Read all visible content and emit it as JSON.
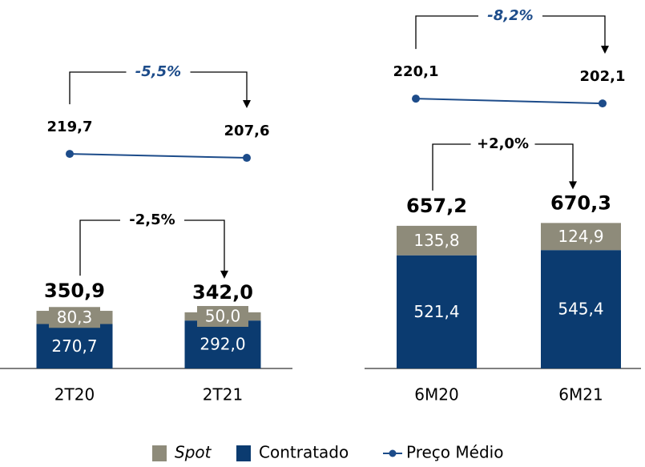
{
  "chart_data": [
    {
      "type": "bar",
      "stacked": true,
      "categories": [
        "2T20",
        "2T21"
      ],
      "series": [
        {
          "name": "Contratado",
          "color": "#0b3b70",
          "values": [
            270.7,
            292.0
          ],
          "value_labels": [
            "270,7",
            "292,0"
          ]
        },
        {
          "name": "Spot",
          "color": "#8e8b7a",
          "values": [
            80.3,
            50.0
          ],
          "value_labels": [
            "80,3",
            "50,0"
          ]
        },
        {
          "name": "Preço Médio",
          "type": "line",
          "color": "#1d4c8a",
          "values": [
            219.7,
            207.6
          ],
          "value_labels": [
            "219,7",
            "207,6"
          ]
        }
      ],
      "totals": [
        350.9,
        342.0
      ],
      "totals_labels": [
        "350,9",
        "342,0"
      ],
      "annotations": {
        "bars": "-2,5%",
        "line": "-5,5%"
      }
    },
    {
      "type": "bar",
      "stacked": true,
      "categories": [
        "6M20",
        "6M21"
      ],
      "series": [
        {
          "name": "Contratado",
          "color": "#0b3b70",
          "values": [
            521.4,
            545.4
          ],
          "value_labels": [
            "521,4",
            "545,4"
          ]
        },
        {
          "name": "Spot",
          "color": "#8e8b7a",
          "values": [
            135.8,
            124.9
          ],
          "value_labels": [
            "135,8",
            "124,9"
          ]
        },
        {
          "name": "Preço Médio",
          "type": "line",
          "color": "#1d4c8a",
          "values": [
            220.1,
            202.1
          ],
          "value_labels": [
            "220,1",
            "202,1"
          ]
        }
      ],
      "totals": [
        657.2,
        670.3
      ],
      "totals_labels": [
        "657,2",
        "670,3"
      ],
      "annotations": {
        "bars": "+2,0%",
        "line": "-8,2%"
      }
    }
  ]
}
